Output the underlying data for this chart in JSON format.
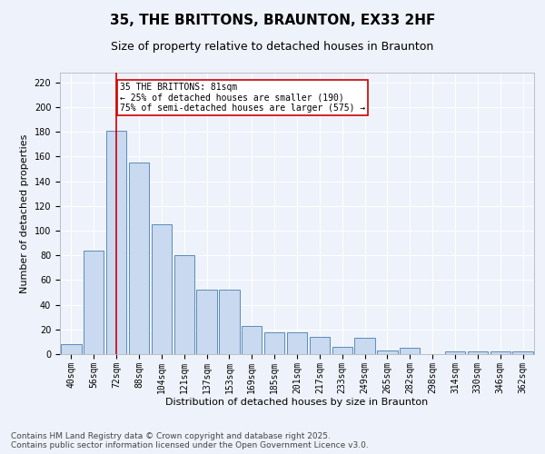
{
  "title": "35, THE BRITTONS, BRAUNTON, EX33 2HF",
  "subtitle": "Size of property relative to detached houses in Braunton",
  "xlabel": "Distribution of detached houses by size in Braunton",
  "ylabel": "Number of detached properties",
  "categories": [
    "40sqm",
    "56sqm",
    "72sqm",
    "88sqm",
    "104sqm",
    "121sqm",
    "137sqm",
    "153sqm",
    "169sqm",
    "185sqm",
    "201sqm",
    "217sqm",
    "233sqm",
    "249sqm",
    "265sqm",
    "282sqm",
    "298sqm",
    "314sqm",
    "330sqm",
    "346sqm",
    "362sqm"
  ],
  "values": [
    8,
    84,
    181,
    155,
    105,
    80,
    52,
    52,
    23,
    18,
    18,
    14,
    6,
    13,
    3,
    5,
    0,
    2,
    2,
    2,
    2
  ],
  "bar_color": "#c8d9f0",
  "bar_edge_color": "#5b8db8",
  "background_color": "#eef2fa",
  "grid_color": "#ffffff",
  "annotation_text": "35 THE BRITTONS: 81sqm\n← 25% of detached houses are smaller (190)\n75% of semi-detached houses are larger (575) →",
  "annotation_box_color": "#ffffff",
  "annotation_box_edge": "#cc0000",
  "vline_x": 2,
  "vline_color": "#cc0000",
  "ylim": [
    0,
    228
  ],
  "yticks": [
    0,
    20,
    40,
    60,
    80,
    100,
    120,
    140,
    160,
    180,
    200,
    220
  ],
  "footer_line1": "Contains HM Land Registry data © Crown copyright and database right 2025.",
  "footer_line2": "Contains public sector information licensed under the Open Government Licence v3.0.",
  "title_fontsize": 11,
  "subtitle_fontsize": 9,
  "axis_label_fontsize": 8,
  "tick_fontsize": 7,
  "footer_fontsize": 6.5,
  "annotation_fontsize": 7
}
